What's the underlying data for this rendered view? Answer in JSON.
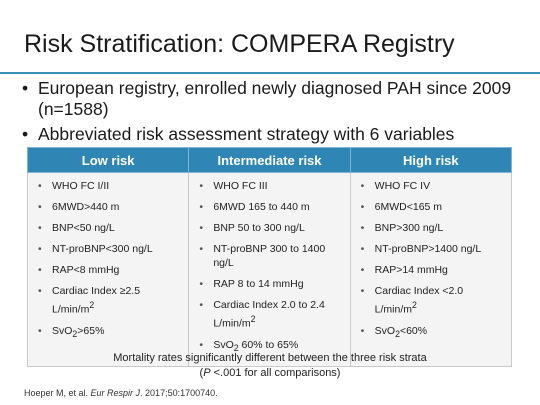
{
  "title": "Risk Stratification: COMPERA Registry",
  "bullets": [
    "European registry, enrolled newly diagnosed PAH since 2009 (n=1588)",
    "Abbreviated risk assessment strategy with 6 variables"
  ],
  "colors": {
    "accent": "#2f86b5",
    "rule": "#3a8fb7",
    "cell_bg": "#f4f4f4"
  },
  "table": {
    "headers": [
      "Low risk",
      "Intermediate risk",
      "High risk"
    ],
    "columns": [
      {
        "items": [
          {
            "t": "WHO FC I/II"
          },
          {
            "t": "6MWD>440 m"
          },
          {
            "t": "BNP<50 ng/L"
          },
          {
            "t": "NT-proBNP<300 ng/L"
          },
          {
            "t": "RAP<8 mmHg"
          },
          {
            "t": "Cardiac Index ≥2.5 L/min/m",
            "sup": "2"
          },
          {
            "t": "SvO",
            "sub": "2",
            "after": ">65%"
          }
        ]
      },
      {
        "items": [
          {
            "t": "WHO FC III"
          },
          {
            "t": "6MWD 165 to 440 m"
          },
          {
            "t": "BNP 50 to 300 ng/L"
          },
          {
            "t": "NT-proBNP 300 to 1400 ng/L"
          },
          {
            "t": "RAP 8 to 14 mmHg"
          },
          {
            "t": "Cardiac Index 2.0 to 2.4 L/min/m",
            "sup": "2"
          },
          {
            "t": "SvO",
            "sub": "2",
            "after": " 60% to 65%"
          }
        ]
      },
      {
        "items": [
          {
            "t": "WHO FC IV"
          },
          {
            "t": "6MWD<165 m"
          },
          {
            "t": "BNP>300 ng/L"
          },
          {
            "t": "NT-proBNP>1400 ng/L"
          },
          {
            "t": "RAP>14 mmHg"
          },
          {
            "t": "Cardiac Index <2.0 L/min/m",
            "sup": "2"
          },
          {
            "t": "SvO",
            "sub": "2",
            "after": "<60%"
          }
        ]
      }
    ]
  },
  "footnote": {
    "line1": "Mortality rates significantly different between the three risk strata",
    "line2_open": "(",
    "line2_p": "P",
    "line2_rest": " <.001 for all comparisons)"
  },
  "citation": {
    "authors": "Hoeper M, et al. ",
    "journal": "Eur Respir J",
    "details": ". 2017;50:1700740."
  }
}
